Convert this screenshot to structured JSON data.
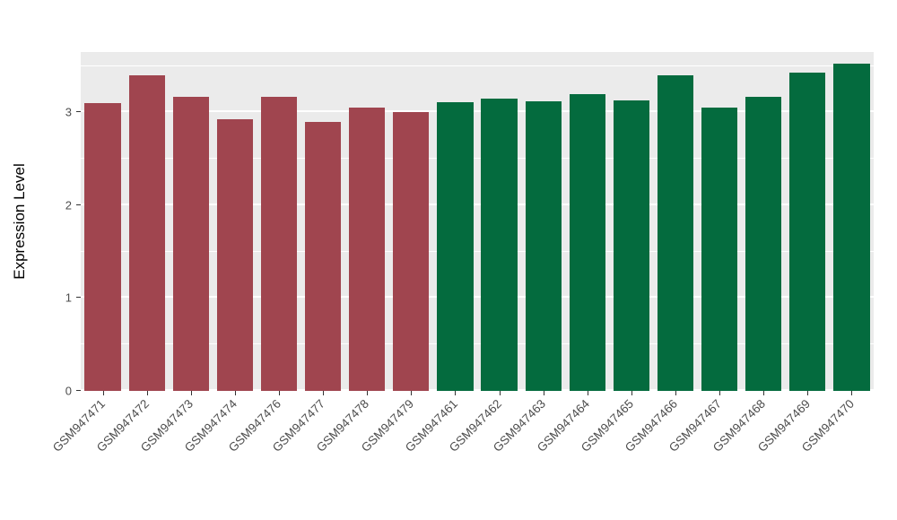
{
  "chart_data": {
    "type": "bar",
    "title": "",
    "xlabel": "",
    "ylabel": "Expression Level",
    "ylim": [
      0,
      3.65
    ],
    "y_major_ticks": [
      0,
      1,
      2,
      3
    ],
    "y_minor_ticks": [
      0.5,
      1.5,
      2.5,
      3.5
    ],
    "grid": true,
    "legend_position": "none",
    "panel_background": "#EBEBEB",
    "gridline_color": "#FFFFFF",
    "group_colors": {
      "group1": "#A0454F",
      "group2": "#046B3E"
    },
    "categories": [
      "GSM947471",
      "GSM947472",
      "GSM947473",
      "GSM947474",
      "GSM947476",
      "GSM947477",
      "GSM947478",
      "GSM947479",
      "GSM947461",
      "GSM947462",
      "GSM947463",
      "GSM947464",
      "GSM947465",
      "GSM947466",
      "GSM947467",
      "GSM947468",
      "GSM947469",
      "GSM947470"
    ],
    "values": [
      3.1,
      3.4,
      3.17,
      2.93,
      3.17,
      2.9,
      3.05,
      3.0,
      3.11,
      3.15,
      3.12,
      3.2,
      3.13,
      3.4,
      3.05,
      3.17,
      3.43,
      3.52
    ],
    "bar_colors": [
      "#A0454F",
      "#A0454F",
      "#A0454F",
      "#A0454F",
      "#A0454F",
      "#A0454F",
      "#A0454F",
      "#A0454F",
      "#046B3E",
      "#046B3E",
      "#046B3E",
      "#046B3E",
      "#046B3E",
      "#046B3E",
      "#046B3E",
      "#046B3E",
      "#046B3E",
      "#046B3E"
    ]
  }
}
